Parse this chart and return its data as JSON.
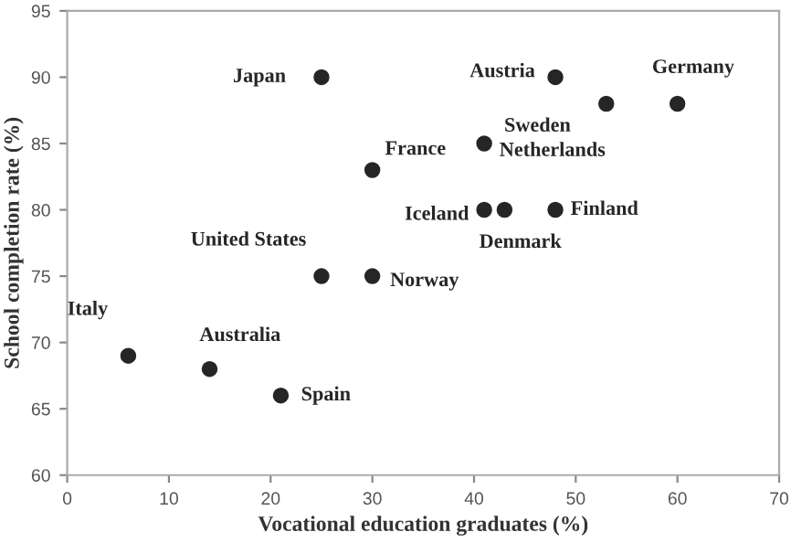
{
  "chart_data": {
    "type": "scatter",
    "xlabel": "Vocational education graduates (%)",
    "ylabel": "School completion rate (%)",
    "x": [
      25,
      48,
      60,
      53,
      41,
      30,
      41,
      43,
      48,
      25,
      30,
      6,
      14,
      21
    ],
    "series": [
      {
        "color": "#262626",
        "values": [
          90,
          90,
          88,
          88,
          85,
          83,
          80,
          80,
          80,
          75,
          75,
          69,
          68,
          66
        ]
      }
    ],
    "marker": "circle",
    "annotations": [
      {
        "text": "Japan",
        "x": 25,
        "y": 90
      },
      {
        "text": "Austria",
        "x": 48,
        "y": 90
      },
      {
        "text": "Germany",
        "x": 60,
        "y": 88
      },
      {
        "text": "Sweden",
        "x": 53,
        "y": 88
      },
      {
        "text": "Netherlands",
        "x": 41,
        "y": 85
      },
      {
        "text": "France",
        "x": 30,
        "y": 83
      },
      {
        "text": "Iceland",
        "x": 41,
        "y": 80
      },
      {
        "text": "Denmark",
        "x": 43,
        "y": 80
      },
      {
        "text": "Finland",
        "x": 48,
        "y": 80
      },
      {
        "text": "United States",
        "x": 25,
        "y": 75
      },
      {
        "text": "Norway",
        "x": 30,
        "y": 75
      },
      {
        "text": "Italy",
        "x": 6,
        "y": 69
      },
      {
        "text": "Australia",
        "x": 14,
        "y": 68
      },
      {
        "text": "Spain",
        "x": 21,
        "y": 66
      }
    ],
    "xlim": [
      0,
      70
    ],
    "xticks": [
      0,
      10,
      20,
      30,
      40,
      50,
      60,
      70
    ],
    "ylim": [
      60,
      95
    ],
    "yticks": [
      60,
      65,
      70,
      75,
      80,
      85,
      90,
      95
    ],
    "grid": false,
    "legend": false
  }
}
